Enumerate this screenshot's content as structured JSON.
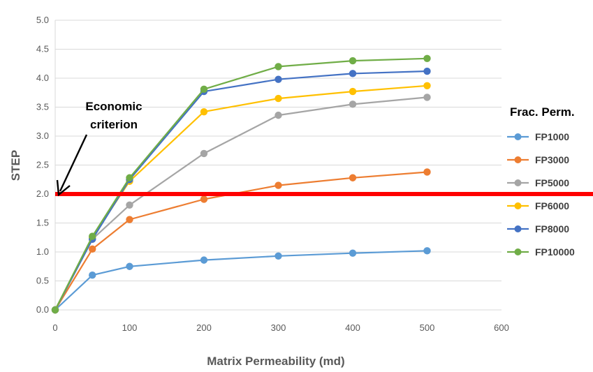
{
  "chart_data": {
    "type": "line",
    "title": "",
    "xlabel": "Matrix Permeability (md)",
    "ylabel": "STEP",
    "xlim": [
      0,
      600
    ],
    "ylim": [
      0,
      5.0
    ],
    "x_ticks": [
      "0",
      "100",
      "200",
      "300",
      "400",
      "500",
      "600"
    ],
    "y_ticks": [
      "0.0",
      "0.5",
      "1.0",
      "1.5",
      "2.0",
      "2.5",
      "3.0",
      "3.5",
      "4.0",
      "4.5",
      "5.0"
    ],
    "grid": "horizontal",
    "legend_title": "Frac. Perm.",
    "legend_position": "right",
    "x": [
      0,
      50,
      100,
      200,
      300,
      400,
      500
    ],
    "series": [
      {
        "name": "FP1000",
        "color": "#5B9BD5",
        "values": [
          0,
          0.6,
          0.75,
          0.86,
          0.93,
          0.98,
          1.02
        ]
      },
      {
        "name": "FP3000",
        "color": "#ED7D31",
        "values": [
          0,
          1.05,
          1.56,
          1.91,
          2.15,
          2.28,
          2.38
        ]
      },
      {
        "name": "FP5000",
        "color": "#A5A5A5",
        "values": [
          0,
          1.22,
          1.81,
          2.7,
          3.36,
          3.55,
          3.67
        ]
      },
      {
        "name": "FP6000",
        "color": "#FFC000",
        "values": [
          0,
          1.25,
          2.22,
          3.42,
          3.65,
          3.77,
          3.87
        ]
      },
      {
        "name": "FP8000",
        "color": "#4472C4",
        "values": [
          0,
          1.22,
          2.25,
          3.77,
          3.98,
          4.08,
          4.12
        ]
      },
      {
        "name": "FP10000",
        "color": "#70AD47",
        "values": [
          0,
          1.27,
          2.28,
          3.81,
          4.2,
          4.3,
          4.34
        ]
      }
    ],
    "reference_line": {
      "y": 2.0,
      "color": "#FF0000"
    },
    "annotation": {
      "lines": [
        "Economic",
        "criterion"
      ]
    },
    "colors": {
      "grid": "#D9D9D9",
      "tick_text": "#595959"
    }
  }
}
